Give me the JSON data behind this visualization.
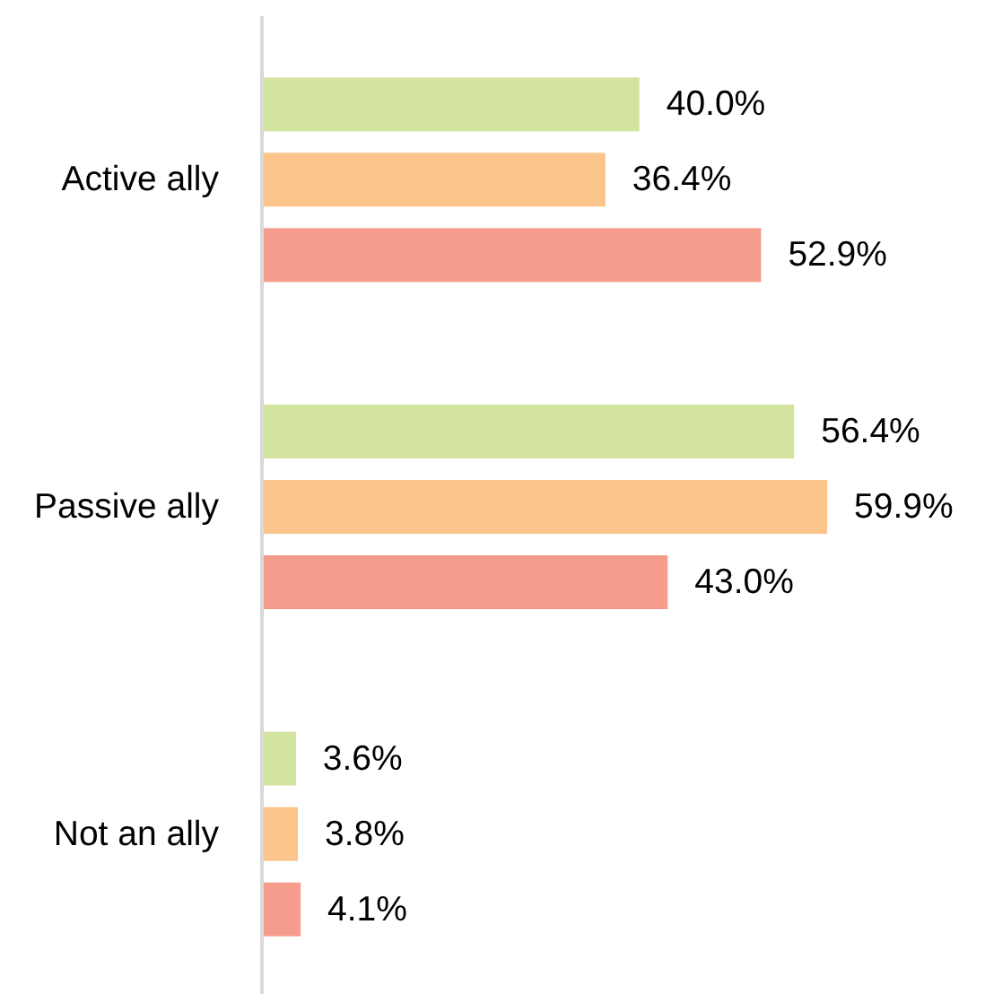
{
  "chart_data": {
    "type": "bar",
    "orientation": "horizontal",
    "categories": [
      "Active ally",
      "Passive ally",
      "Not an ally"
    ],
    "series": [
      {
        "color": "#d2e4a0",
        "values": [
          40.0,
          56.4,
          3.6
        ],
        "value_labels": [
          "40.0%",
          "56.4%",
          "3.6%"
        ]
      },
      {
        "color": "#fac48a",
        "values": [
          36.4,
          59.9,
          3.8
        ],
        "value_labels": [
          "36.4%",
          "59.9%",
          "3.8%"
        ]
      },
      {
        "color": "#f59c8c",
        "values": [
          52.9,
          43.0,
          4.1
        ],
        "value_labels": [
          "52.9%",
          "43.0%",
          "4.1%"
        ]
      }
    ]
  }
}
